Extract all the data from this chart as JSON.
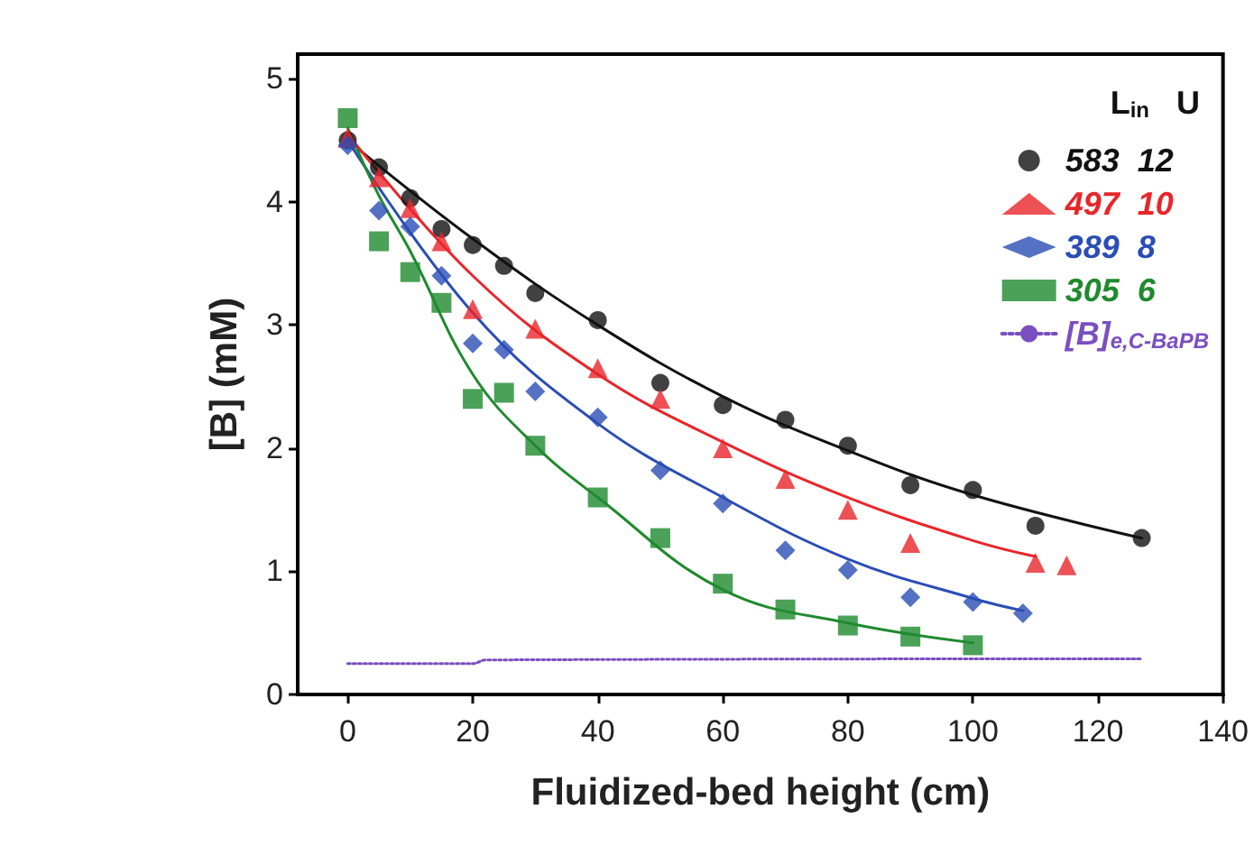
{
  "chart_data": {
    "type": "scatter",
    "xlabel": "Fluidized-bed height (cm)",
    "ylabel": "[B] (mM)",
    "legend_title": "L$_{in}$   U",
    "legend": "top right",
    "grid": false,
    "xlim": [
      -8,
      140
    ],
    "xticks": [
      0,
      20,
      40,
      60,
      80,
      100,
      120,
      140
    ],
    "ylim": [
      0,
      5.2
    ],
    "yticks": [
      0,
      1,
      2,
      3,
      4,
      5
    ],
    "series": [
      {
        "name": "583  12",
        "color": "#111111",
        "marker": "circle",
        "x": [
          0,
          5,
          10,
          15,
          20,
          25,
          30,
          40,
          50,
          60,
          70,
          80,
          90,
          100,
          110,
          127
        ],
        "values": [
          4.5,
          4.28,
          4.03,
          3.78,
          3.65,
          3.48,
          3.26,
          3.04,
          2.53,
          2.35,
          2.23,
          2.02,
          1.7,
          1.66,
          1.37,
          1.27
        ]
      },
      {
        "name": "497  10",
        "color": "#e8262a",
        "marker": "triangle",
        "x": [
          0,
          5,
          10,
          15,
          20,
          30,
          40,
          50,
          60,
          70,
          80,
          90,
          110,
          115
        ],
        "values": [
          4.52,
          4.2,
          3.95,
          3.68,
          3.13,
          2.97,
          2.65,
          2.4,
          2.0,
          1.75,
          1.5,
          1.23,
          1.07,
          1.05
        ]
      },
      {
        "name": "389  8",
        "color": "#2a4db5",
        "marker": "diamond",
        "x": [
          0,
          5,
          10,
          15,
          20,
          25,
          30,
          40,
          50,
          60,
          70,
          80,
          90,
          100,
          108
        ],
        "values": [
          4.46,
          3.93,
          3.8,
          3.4,
          2.85,
          2.8,
          2.46,
          2.25,
          1.82,
          1.55,
          1.17,
          1.01,
          0.79,
          0.75,
          0.66
        ]
      },
      {
        "name": "305  6",
        "color": "#1f8a2e",
        "marker": "square",
        "x": [
          0,
          5,
          10,
          15,
          20,
          25,
          30,
          40,
          50,
          60,
          70,
          80,
          90,
          100
        ],
        "values": [
          4.68,
          3.68,
          3.43,
          3.18,
          2.4,
          2.45,
          2.02,
          1.6,
          1.27,
          0.9,
          0.69,
          0.56,
          0.47,
          0.4
        ]
      },
      {
        "type": "line",
        "color": "#111111",
        "marker": "none",
        "x": [
          0,
          20,
          40,
          60,
          80,
          100,
          127
        ],
        "values": [
          4.5,
          3.7,
          3.0,
          2.42,
          1.98,
          1.62,
          1.27
        ]
      },
      {
        "type": "line",
        "color": "#e8262a",
        "marker": "none",
        "x": [
          0,
          20,
          40,
          60,
          80,
          100,
          110
        ],
        "values": [
          4.55,
          3.4,
          2.6,
          2.05,
          1.6,
          1.25,
          1.12
        ]
      },
      {
        "type": "line",
        "color": "#2a4db5",
        "marker": "none",
        "x": [
          0,
          20,
          40,
          60,
          80,
          100,
          108
        ],
        "values": [
          4.5,
          3.1,
          2.2,
          1.6,
          1.1,
          0.78,
          0.68
        ]
      },
      {
        "type": "line",
        "color": "#1f8a2e",
        "marker": "none",
        "x": [
          0,
          5,
          10,
          20,
          30,
          40,
          60,
          80,
          100
        ],
        "values": [
          4.6,
          4.05,
          3.6,
          2.6,
          2.02,
          1.6,
          0.85,
          0.58,
          0.42
        ]
      },
      {
        "type": "line",
        "name": "[B]$_{e,C-BaPB}$",
        "color": "#7a4fc0",
        "marker": "none",
        "line_style": "dotted",
        "x": [
          0,
          20,
          22,
          127
        ],
        "values": [
          0.25,
          0.25,
          0.28,
          0.29
        ]
      }
    ]
  }
}
